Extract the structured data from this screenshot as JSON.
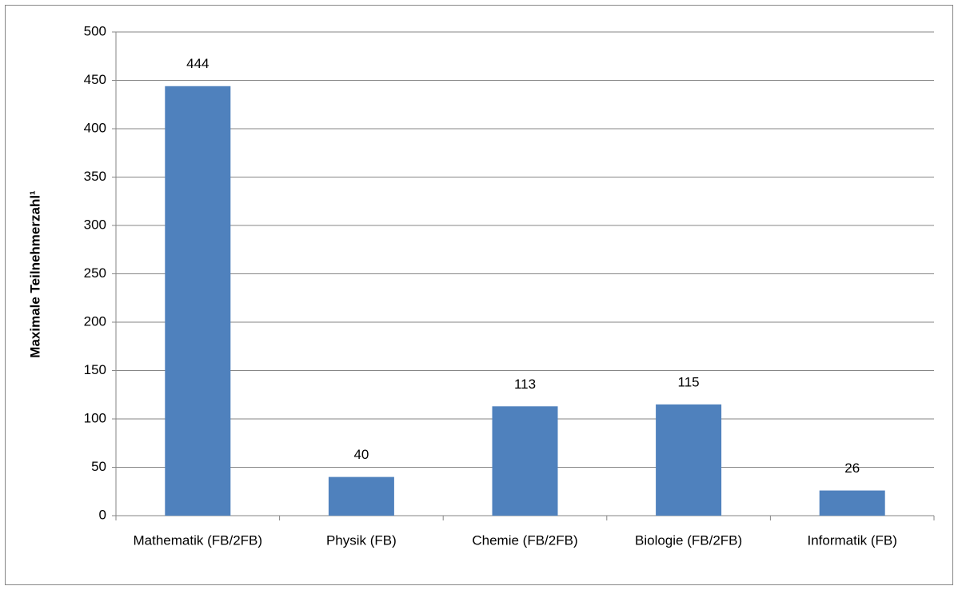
{
  "chart_data": {
    "type": "bar",
    "y_axis_label": "Maximale Teilnehmerzahl¹",
    "categories": [
      "Mathematik (FB/2FB)",
      "Physik (FB)",
      "Chemie (FB/2FB)",
      "Biologie (FB/2FB)",
      "Informatik (FB)"
    ],
    "values": [
      444,
      40,
      113,
      115,
      26
    ],
    "color": "#4f81bd",
    "ylim": [
      0,
      500
    ],
    "yticks": [
      0,
      50,
      100,
      150,
      200,
      250,
      300,
      350,
      400,
      450,
      500
    ],
    "grid": true
  }
}
